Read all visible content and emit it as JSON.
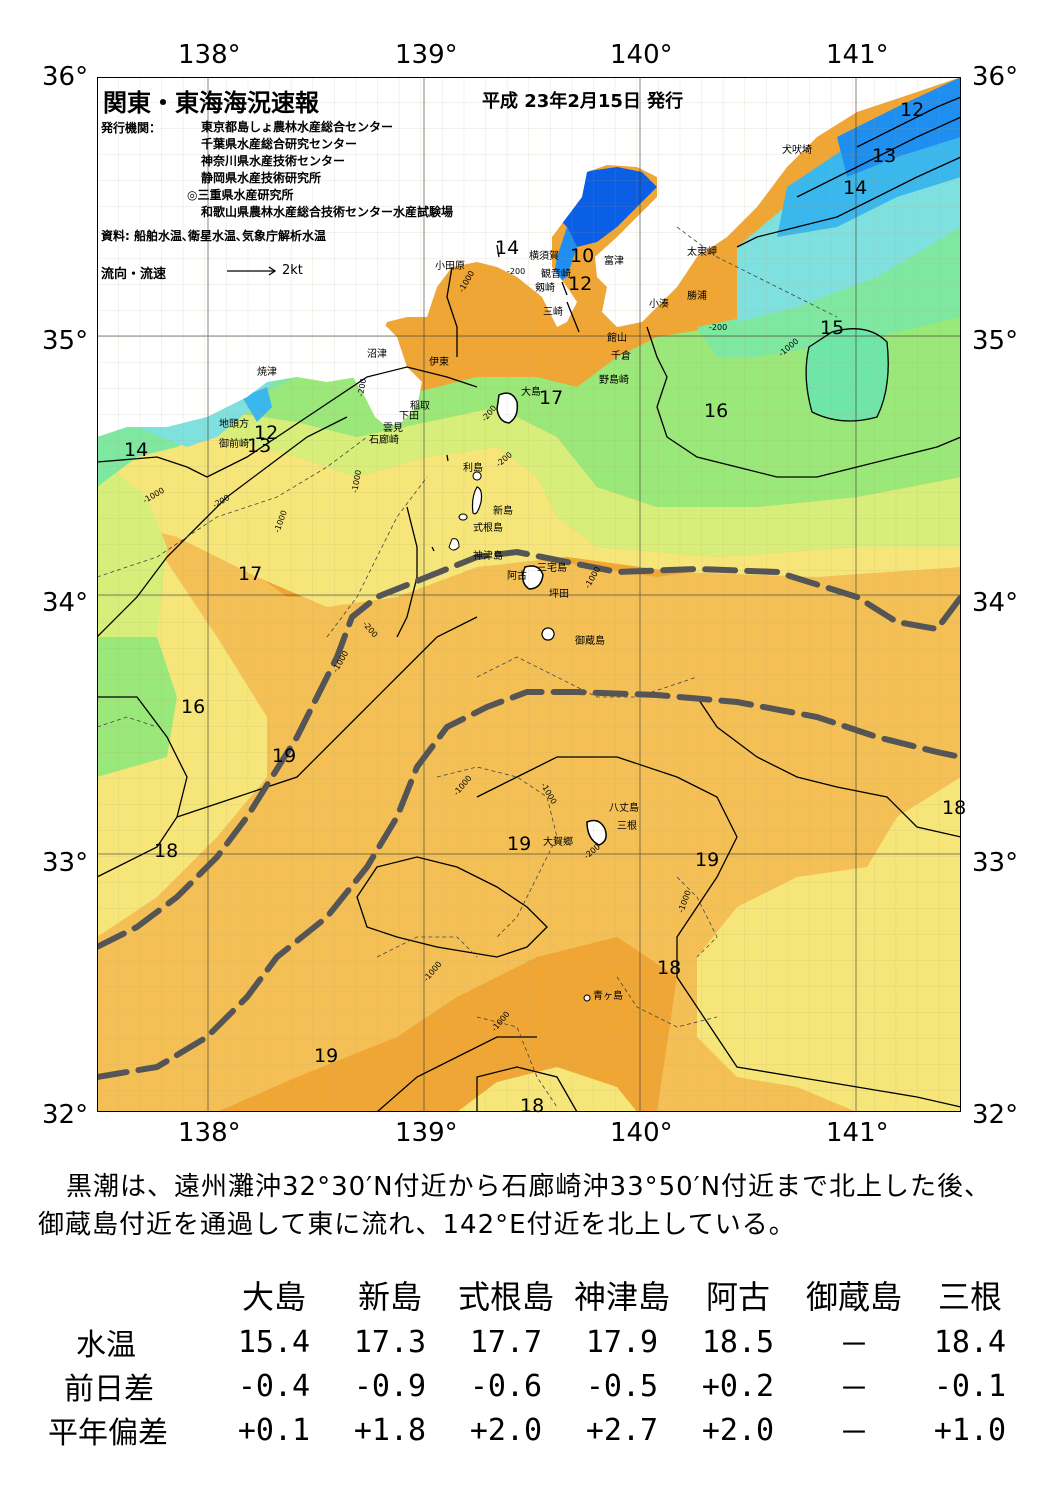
{
  "axes": {
    "lon_labels": [
      "138°",
      "139°",
      "140°",
      "141°"
    ],
    "lat_labels": [
      "36°",
      "35°",
      "34°",
      "33°",
      "32°"
    ]
  },
  "header": {
    "title": "関東・東海海況速報",
    "date": "平成 23年2月15日 発行",
    "publisher_label": "発行機関：",
    "publishers": [
      "東京都島しょ農林水産総合センター",
      "千葉県水産総合研究センター",
      "神奈川県水産技術センター",
      "静岡県水産技術研究所",
      "◎三重県水産研究所",
      "和歌山県農林水産総合技術センター水産試験場"
    ],
    "source": "資料: 船舶水温､衛星水温､気象庁解析水温",
    "legend_label": "流向・流速",
    "legend_value": "2kt"
  },
  "places": {
    "inubozaki": "犬吠埼",
    "odawara": "小田原",
    "yokosuka": "横須賀",
    "futtsu": "富津",
    "kannonzaki": "観音崎",
    "tsurugizaki": "剱崎",
    "miura": "三崎",
    "taitomisaki": "太東岬",
    "katsuura": "勝浦",
    "kominato": "小湊",
    "tateyama": "館山",
    "chikura": "千倉",
    "nojimazaki": "野島崎",
    "numazu": "沼津",
    "ito": "伊東",
    "inatori": "稲取",
    "shimoda": "下田",
    "kumomi": "雲見",
    "irozaki": "石廊崎",
    "yaizu": "焼津",
    "jitogashira": "地頭方",
    "omaezaki": "御前崎",
    "oshima": "大島",
    "toshima": "利島",
    "niijima": "新島",
    "shikinejima": "式根島",
    "kozushima": "神津島",
    "miyakejima": "三宅島",
    "ako": "阿古",
    "tsubota": "坪田",
    "mikurajima": "御蔵島",
    "hachijojima": "八丈島",
    "mine": "三根",
    "okago": "大賀郷",
    "aogashima": "青ヶ島"
  },
  "contours": {
    "c12a": "12",
    "c13a": "13",
    "c14a": "14",
    "c15a": "15",
    "c14b": "14",
    "c10": "10",
    "c12b": "12",
    "c17a": "17",
    "c16a": "16",
    "c12c": "12",
    "c13b": "13",
    "c14c": "14",
    "c17b": "17",
    "c16b": "16",
    "c19a": "19",
    "c18a": "18",
    "c19b": "19",
    "c19c": "19",
    "c18b": "18",
    "c18c": "18",
    "c19d": "19",
    "c18d": "18"
  },
  "depths": {
    "d1": "-1000",
    "d2": "-200",
    "d3": "-200",
    "d4": "-1000",
    "d5": "-200",
    "d6": "-200",
    "d7": "-1000",
    "d8": "-200",
    "d9": "-1000",
    "d10": "-200",
    "d11": "-1000",
    "d12": "-1000",
    "d13": "-1000",
    "d14": "-200",
    "d15": "-1000",
    "d16": "-200",
    "d17": "-1000",
    "d18": "-1000",
    "d19": "-1000",
    "d20": "-1000"
  },
  "caption": {
    "line1": "黒潮は、遠州灘沖32°30′N付近から石廊崎沖33°50′N付近まで北上した後、",
    "line2": "御蔵島付近を通過して東に流れ、142°E付近を北上している。"
  },
  "table": {
    "columns": [
      "大島",
      "新島",
      "式根島",
      "神津島",
      "阿古",
      "御蔵島",
      "三根"
    ],
    "rows": [
      {
        "label": "水温",
        "values": [
          "15.4",
          "17.3",
          "17.7",
          "17.9",
          "18.5",
          "－",
          "18.4"
        ]
      },
      {
        "label": "前日差",
        "values": [
          "-0.4",
          "-0.9",
          "-0.6",
          "-0.5",
          "+0.2",
          "－",
          "-0.1"
        ]
      },
      {
        "label": "平年偏差",
        "values": [
          "+0.1",
          "+1.8",
          "+2.0",
          "+2.7",
          "+2.0",
          "－",
          "+1.0"
        ]
      }
    ]
  },
  "colors": {
    "land": "#ffffff",
    "sst_10": "#0a5fe6",
    "sst_12": "#1e8ff0",
    "sst_13": "#3ab8ee",
    "sst_14": "#7fe0e0",
    "sst_15": "#7ee8a0",
    "sst_16": "#9ae87a",
    "sst_17": "#d8ee7a",
    "sst_18": "#f6e67a",
    "sst_19": "#f4c056",
    "sst_20": "#f0a634",
    "kuroshio": "#555555"
  }
}
